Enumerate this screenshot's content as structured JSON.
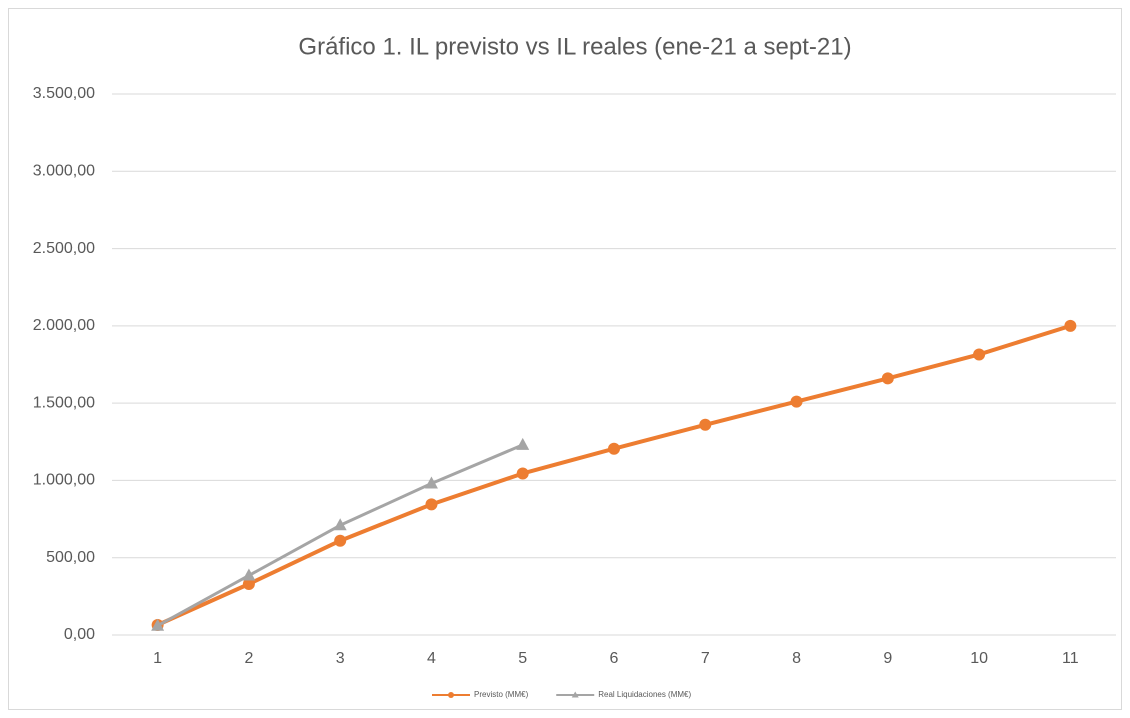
{
  "chart_data": {
    "type": "line",
    "title": "Gráfico 1. IL previsto vs IL reales (ene-21 a sept-21)",
    "categories": [
      "1",
      "2",
      "3",
      "4",
      "5",
      "6",
      "7",
      "8",
      "9",
      "10",
      "11"
    ],
    "series": [
      {
        "name": "Previsto (MM€)",
        "color": "#ed7d31",
        "marker": "circle",
        "values": [
          65,
          330,
          610,
          845,
          1045,
          1205,
          1360,
          1510,
          1660,
          1815,
          2000
        ]
      },
      {
        "name": "Real Liquidaciones (MM€)",
        "color": "#a5a5a5",
        "marker": "triangle",
        "values": [
          60,
          385,
          710,
          980,
          1230,
          null,
          null,
          null,
          null,
          null,
          null
        ]
      }
    ],
    "ylim": [
      0,
      3500
    ],
    "yticks": [
      {
        "value": 0,
        "label": "0,00"
      },
      {
        "value": 500,
        "label": "500,00"
      },
      {
        "value": 1000,
        "label": "1.000,00"
      },
      {
        "value": 1500,
        "label": "1.500,00"
      },
      {
        "value": 2000,
        "label": "2.000,00"
      },
      {
        "value": 2500,
        "label": "2.500,00"
      },
      {
        "value": 3000,
        "label": "3.000,00"
      },
      {
        "value": 3500,
        "label": "3.500,00"
      }
    ],
    "grid": true,
    "legend": "bottom"
  }
}
